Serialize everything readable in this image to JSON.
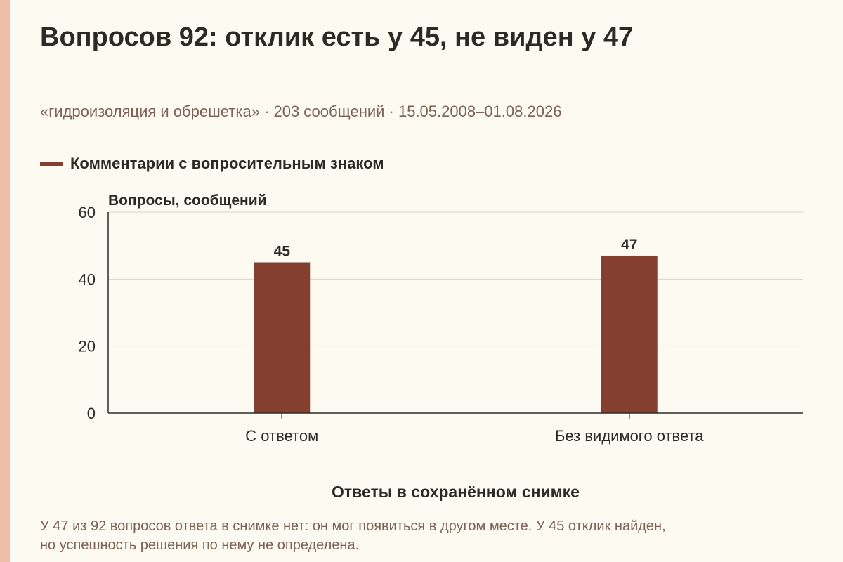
{
  "title": "Вопросов 92: отклик есть у 45, не виден у 47",
  "subtitle": "«гидроизоляция и обрешетка» · 203 сообщений · 15.05.2008–01.08.2026",
  "note": {
    "line1": "У 47 из 92 вопросов ответа в снимке нет: он мог появиться в другом месте. У 45 отклик найден,",
    "line2": "но успешность решения по нему не определена."
  },
  "colors": {
    "bar": "#843f2f",
    "background": "#fdfaf2",
    "stripe": "#eebfa6",
    "grid": "#d9d5cb"
  },
  "chart_data": {
    "type": "bar",
    "categories": [
      "С ответом",
      "Без видимого ответа"
    ],
    "series": [
      {
        "name": "Комментарии с вопросительным знаком",
        "values": [
          45,
          47
        ]
      }
    ],
    "ylabel": "Вопросы, сообщений",
    "xlabel": "Ответы в сохранённом снимке",
    "ylim": [
      0,
      60
    ],
    "yticks": [
      0,
      20,
      40,
      60
    ],
    "grid": true,
    "legend": "top-left"
  }
}
